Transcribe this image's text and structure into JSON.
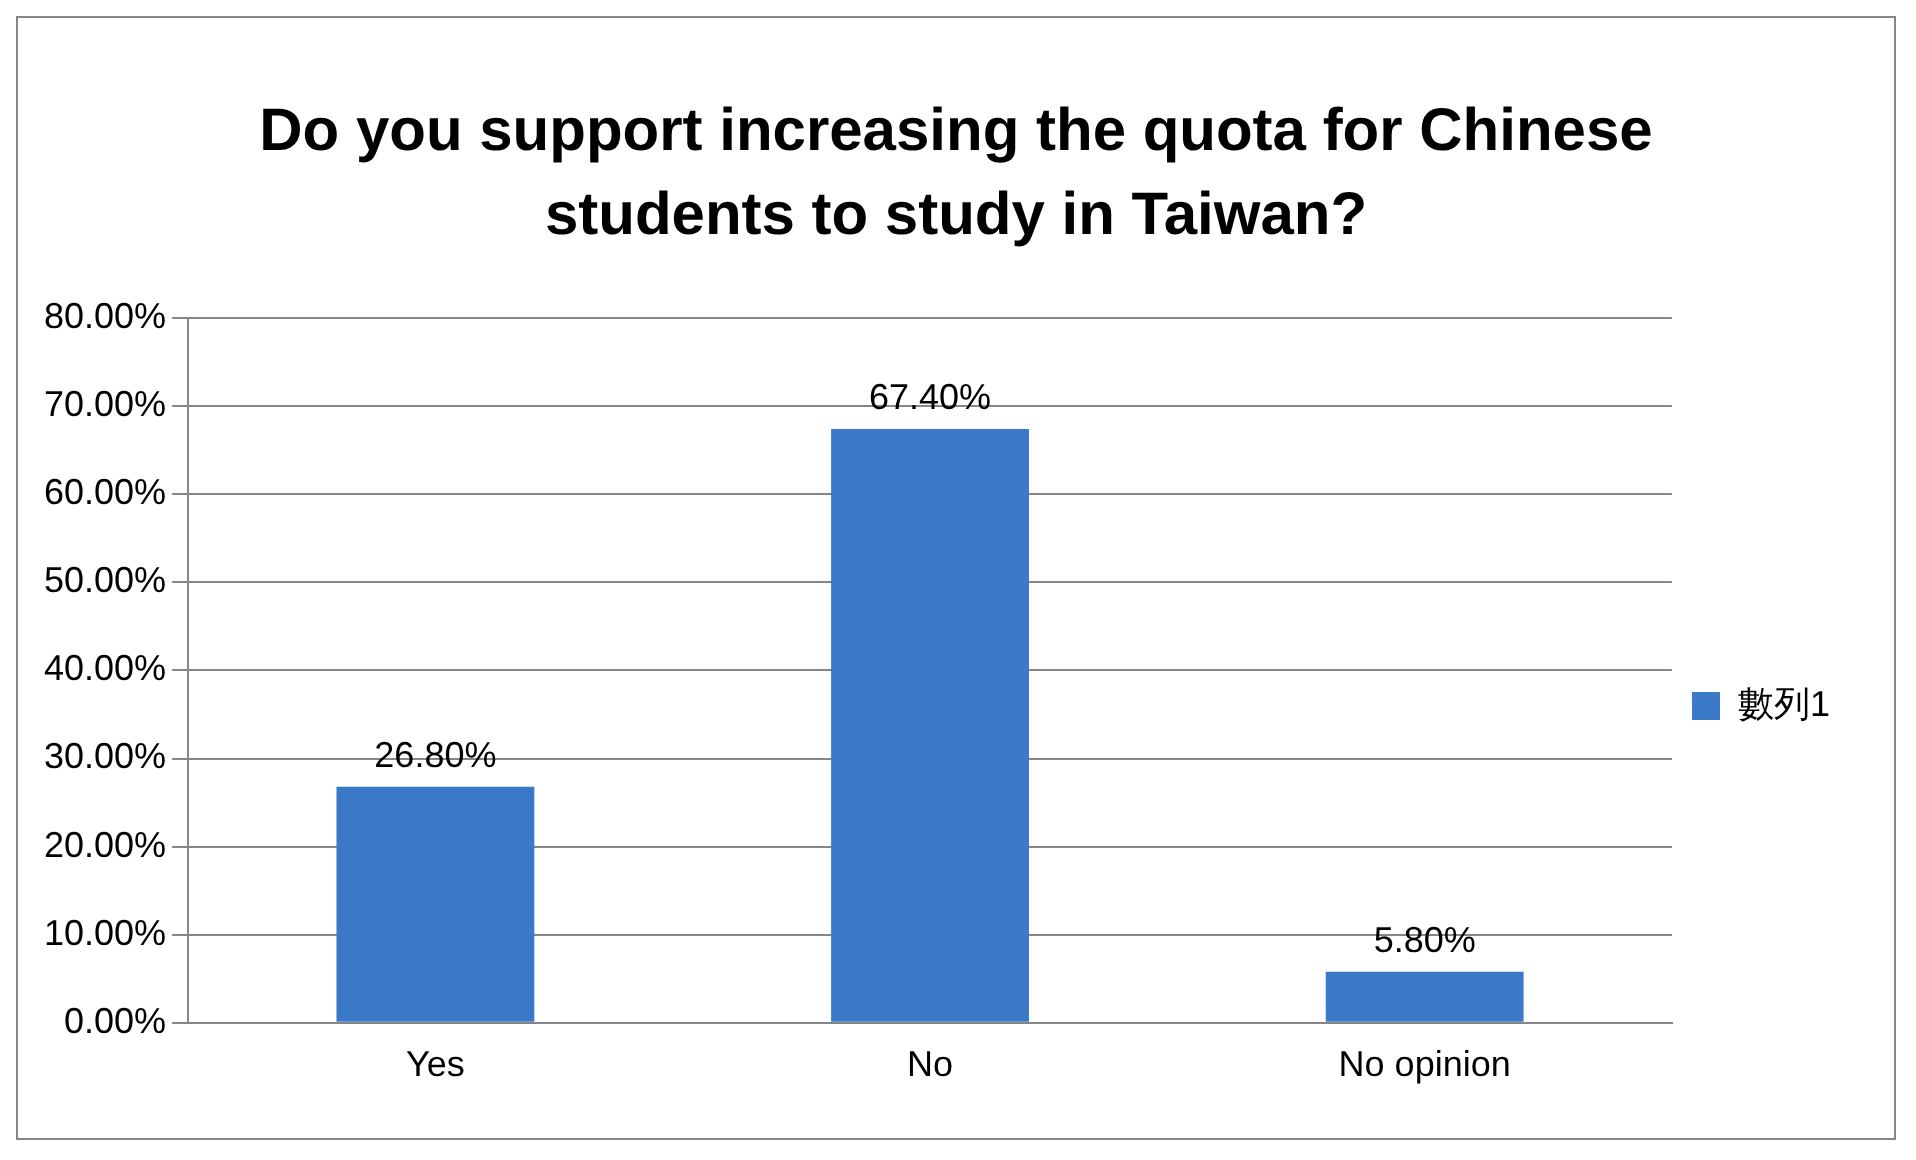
{
  "chart_data": {
    "type": "bar",
    "title": "Do you support increasing the quota for Chinese students to study in Taiwan?",
    "categories": [
      "Yes",
      "No",
      "No opinion"
    ],
    "series": [
      {
        "name": "數列1",
        "color": "#3a78c8",
        "values": [
          26.8,
          67.4,
          5.8
        ],
        "value_labels": [
          "26.80%",
          "67.40%",
          "5.80%"
        ]
      }
    ],
    "ylim": [
      0,
      80
    ],
    "yticks": [
      {
        "value": 0,
        "label": "0.00%"
      },
      {
        "value": 10,
        "label": "10.00%"
      },
      {
        "value": 20,
        "label": "20.00%"
      },
      {
        "value": 30,
        "label": "30.00%"
      },
      {
        "value": 40,
        "label": "40.00%"
      },
      {
        "value": 50,
        "label": "50.00%"
      },
      {
        "value": 60,
        "label": "60.00%"
      },
      {
        "value": 70,
        "label": "70.00%"
      },
      {
        "value": 80,
        "label": "80.00%"
      }
    ],
    "grid": "y",
    "legend": "right"
  }
}
